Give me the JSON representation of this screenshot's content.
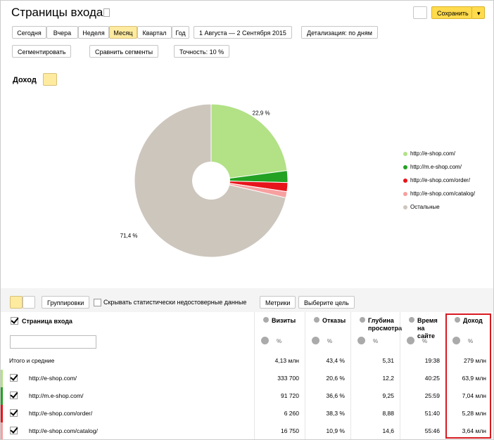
{
  "header": {
    "title": "Страницы входа",
    "save": "Сохранить"
  },
  "toolbar": {
    "periods": [
      "Сегодня",
      "Вчера",
      "Неделя",
      "Месяц",
      "Квартал",
      "Год"
    ],
    "date_range": "1 Августа — 2 Сентября 2015",
    "detail": "Детализация: по дням",
    "segment": "Сегментировать",
    "compare": "Сравнить сегменты",
    "accuracy": "Точность: 10 %"
  },
  "chart_data": {
    "type": "pie",
    "title": "Доход",
    "categories": [
      "http://e-shop.com/",
      "http://m.e-shop.com/",
      "http://e-shop.com/order/",
      "http://e-shop.com/catalog/",
      "Остальные"
    ],
    "values": [
      22.9,
      2.5,
      1.9,
      1.3,
      71.4
    ],
    "value_labels": [
      "22,9 %",
      null,
      null,
      null,
      "71,4 %"
    ],
    "colors": [
      "#b2e186",
      "#23a123",
      "#e8141b",
      "#f7a0a0",
      "#cdc6bd"
    ]
  },
  "table": {
    "groupings": "Группировки",
    "hide": "Скрывать статистически недостоверные данные",
    "metrics": "Метрики",
    "goal": "Выберите цель",
    "percent": "%",
    "columns": [
      "Страница входа",
      "Визиты",
      "Отказы",
      "Глубина просмотра",
      "Время на сайте",
      "Доход"
    ],
    "rows": [
      [
        "Итого и средние",
        "4,13 млн",
        "43,4 %",
        "5,31",
        "19:38",
        "279 млн"
      ],
      [
        "http://e-shop.com/",
        "333 700",
        "20,6 %",
        "12,2",
        "40:25",
        "63,9 млн"
      ],
      [
        "http://m.e-shop.com/",
        "91 720",
        "36,6 %",
        "9,25",
        "25:59",
        "7,04 млн"
      ],
      [
        "http://e-shop.com/order/",
        "6 260",
        "38,3 %",
        "8,88",
        "51:40",
        "5,28 млн"
      ],
      [
        "http://e-shop.com/catalog/",
        "16 750",
        "10,9 %",
        "14,6",
        "55:46",
        "3,64 млн"
      ]
    ]
  }
}
